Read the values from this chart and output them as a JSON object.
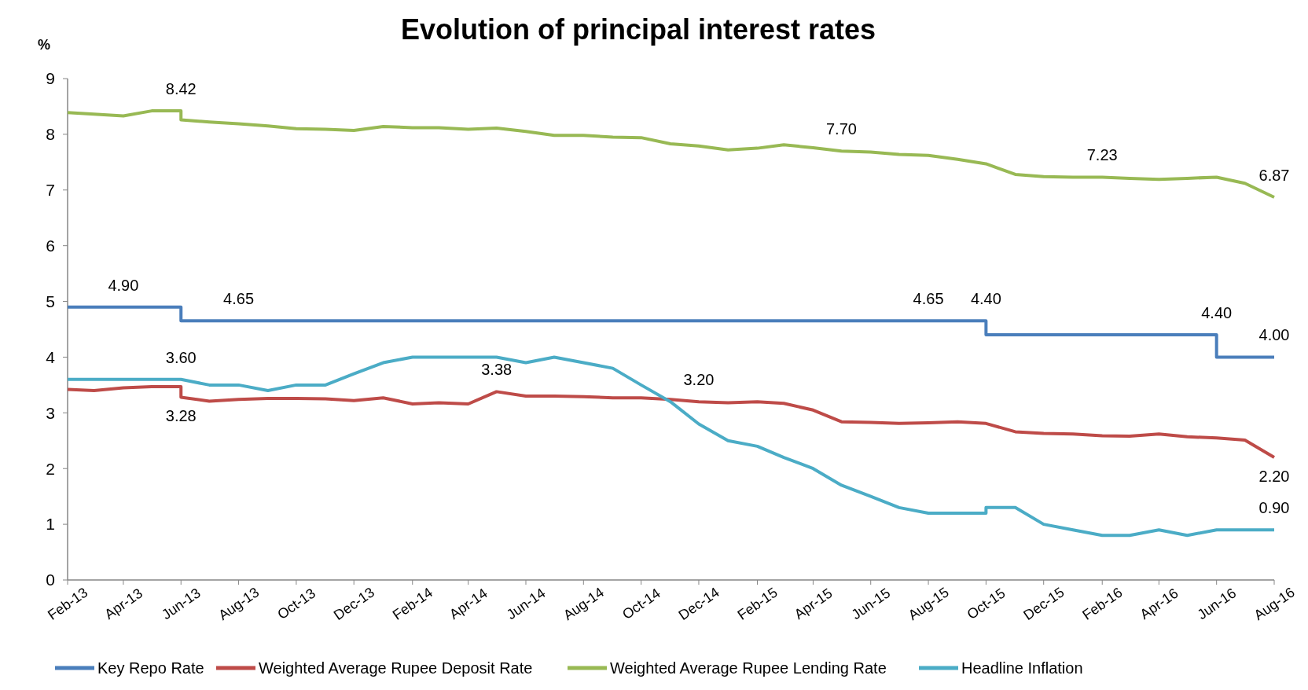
{
  "chart_data": {
    "type": "line",
    "title": "Evolution of  principal interest rates",
    "ylabel": "%",
    "xlim": [
      "2013-02",
      "2016-08"
    ],
    "xticks": [
      {
        "value": "2013-02",
        "label": "Feb-13"
      },
      {
        "value": "2013-04",
        "label": "Apr-13"
      },
      {
        "value": "2013-06",
        "label": "Jun-13"
      },
      {
        "value": "2013-08",
        "label": "Aug-13"
      },
      {
        "value": "2013-10",
        "label": "Oct-13"
      },
      {
        "value": "2013-12",
        "label": "Dec-13"
      },
      {
        "value": "2014-02",
        "label": "Feb-14"
      },
      {
        "value": "2014-04",
        "label": "Apr-14"
      },
      {
        "value": "2014-06",
        "label": "Jun-14"
      },
      {
        "value": "2014-08",
        "label": "Aug-14"
      },
      {
        "value": "2014-10",
        "label": "Oct-14"
      },
      {
        "value": "2014-12",
        "label": "Dec-14"
      },
      {
        "value": "2015-02",
        "label": "Feb-15"
      },
      {
        "value": "2015-04",
        "label": "Apr-15"
      },
      {
        "value": "2015-06",
        "label": "Jun-15"
      },
      {
        "value": "2015-08",
        "label": "Aug-15"
      },
      {
        "value": "2015-10",
        "label": "Oct-15"
      },
      {
        "value": "2015-12",
        "label": "Dec-15"
      },
      {
        "value": "2016-02",
        "label": "Feb-16"
      },
      {
        "value": "2016-04",
        "label": "Apr-16"
      },
      {
        "value": "2016-06",
        "label": "Jun-16"
      },
      {
        "value": "2016-08",
        "label": "Aug-16"
      }
    ],
    "ylim": [
      0,
      9
    ],
    "yticks": [
      0,
      1,
      2,
      3,
      4,
      5,
      6,
      7,
      8,
      9
    ],
    "grid": false,
    "legend": "bottom",
    "marker": "none",
    "line_style": "solid",
    "series": [
      {
        "name": "Key Repo Rate",
        "color": "#4a7ebb",
        "x": [
          "2013-02",
          "2013-06",
          "2013-06",
          "2015-10",
          "2015-10",
          "2016-06",
          "2016-06",
          "2016-08"
        ],
        "values": [
          4.9,
          4.9,
          4.65,
          4.65,
          4.4,
          4.4,
          4.0,
          4.0
        ]
      },
      {
        "name": "Weighted Average Rupee Deposit Rate",
        "color": "#be4b48",
        "x": [
          "2013-02",
          "2013-03",
          "2013-04",
          "2013-05",
          "2013-06",
          "2013-06",
          "2013-07",
          "2013-08",
          "2013-09",
          "2013-10",
          "2013-11",
          "2013-12",
          "2014-01",
          "2014-02",
          "2014-03",
          "2014-04",
          "2014-05",
          "2014-06",
          "2014-07",
          "2014-08",
          "2014-09",
          "2014-10",
          "2014-11",
          "2014-12",
          "2015-01",
          "2015-02",
          "2015-03",
          "2015-04",
          "2015-05",
          "2015-06",
          "2015-07",
          "2015-08",
          "2015-09",
          "2015-10",
          "2015-11",
          "2015-12",
          "2016-01",
          "2016-02",
          "2016-03",
          "2016-04",
          "2016-05",
          "2016-06",
          "2016-07",
          "2016-08"
        ],
        "values": [
          3.42,
          3.4,
          3.45,
          3.47,
          3.47,
          3.28,
          3.21,
          3.24,
          3.26,
          3.26,
          3.25,
          3.22,
          3.27,
          3.16,
          3.18,
          3.16,
          3.38,
          3.3,
          3.3,
          3.29,
          3.27,
          3.27,
          3.24,
          3.2,
          3.18,
          3.2,
          3.17,
          3.05,
          2.84,
          2.83,
          2.81,
          2.82,
          2.84,
          2.81,
          2.66,
          2.63,
          2.62,
          2.59,
          2.58,
          2.62,
          2.57,
          2.55,
          2.51,
          2.2
        ]
      },
      {
        "name": "Weighted Average Rupee Lending Rate",
        "color": "#98b954",
        "x": [
          "2013-02",
          "2013-03",
          "2013-04",
          "2013-05",
          "2013-06",
          "2013-06",
          "2013-07",
          "2013-08",
          "2013-09",
          "2013-10",
          "2013-11",
          "2013-12",
          "2014-01",
          "2014-02",
          "2014-03",
          "2014-04",
          "2014-05",
          "2014-06",
          "2014-07",
          "2014-08",
          "2014-09",
          "2014-10",
          "2014-11",
          "2014-12",
          "2015-01",
          "2015-02",
          "2015-03",
          "2015-04",
          "2015-05",
          "2015-06",
          "2015-07",
          "2015-08",
          "2015-09",
          "2015-10",
          "2015-11",
          "2015-12",
          "2016-01",
          "2016-02",
          "2016-03",
          "2016-04",
          "2016-05",
          "2016-06",
          "2016-07",
          "2016-08"
        ],
        "values": [
          8.39,
          8.36,
          8.33,
          8.42,
          8.42,
          8.26,
          8.22,
          8.19,
          8.15,
          8.1,
          8.09,
          8.07,
          8.14,
          8.12,
          8.12,
          8.09,
          8.11,
          8.05,
          7.98,
          7.98,
          7.95,
          7.94,
          7.83,
          7.79,
          7.72,
          7.75,
          7.81,
          7.76,
          7.7,
          7.68,
          7.64,
          7.62,
          7.55,
          7.47,
          7.28,
          7.24,
          7.23,
          7.23,
          7.21,
          7.19,
          7.21,
          7.23,
          7.12,
          6.87
        ]
      },
      {
        "name": "Headline Inflation",
        "color": "#4bacc6",
        "x": [
          "2013-02",
          "2013-03",
          "2013-04",
          "2013-05",
          "2013-06",
          "2013-07",
          "2013-08",
          "2013-09",
          "2013-10",
          "2013-11",
          "2013-12",
          "2014-01",
          "2014-02",
          "2014-03",
          "2014-04",
          "2014-05",
          "2014-06",
          "2014-07",
          "2014-08",
          "2014-09",
          "2014-10",
          "2014-11",
          "2014-12",
          "2015-01",
          "2015-02",
          "2015-03",
          "2015-04",
          "2015-05",
          "2015-06",
          "2015-07",
          "2015-08",
          "2015-09",
          "2015-10",
          "2015-10",
          "2015-11",
          "2015-12",
          "2016-01",
          "2016-02",
          "2016-03",
          "2016-04",
          "2016-05",
          "2016-06",
          "2016-07",
          "2016-08"
        ],
        "values": [
          3.6,
          3.6,
          3.6,
          3.6,
          3.6,
          3.5,
          3.5,
          3.4,
          3.5,
          3.5,
          3.7,
          3.9,
          4.0,
          4.0,
          4.0,
          4.0,
          3.9,
          4.0,
          3.9,
          3.8,
          3.5,
          3.2,
          2.8,
          2.5,
          2.4,
          2.2,
          2.0,
          1.7,
          1.5,
          1.3,
          1.2,
          1.2,
          1.2,
          1.3,
          1.3,
          1.0,
          0.9,
          0.8,
          0.8,
          0.9,
          0.8,
          0.9,
          0.9,
          0.9
        ]
      }
    ],
    "annotations": [
      {
        "text": "8.42",
        "x": "2013-06",
        "y": 8.42
      },
      {
        "text": "7.70",
        "x": "2015-05",
        "y": 7.7
      },
      {
        "text": "7.23",
        "x": "2016-02",
        "y": 7.23
      },
      {
        "text": "6.87",
        "x": "2016-08",
        "y": 6.87
      },
      {
        "text": "4.90",
        "x": "2013-04",
        "y": 4.9
      },
      {
        "text": "4.65",
        "x": "2013-08",
        "y": 4.65
      },
      {
        "text": "4.65",
        "x": "2015-08",
        "y": 4.65
      },
      {
        "text": "4.40",
        "x": "2015-10",
        "y": 4.4
      },
      {
        "text": "4.40",
        "x": "2016-06",
        "y": 4.4
      },
      {
        "text": "4.00",
        "x": "2016-08",
        "y": 4.0
      },
      {
        "text": "3.60",
        "x": "2013-06",
        "y": 3.6
      },
      {
        "text": "3.28",
        "x": "2013-06",
        "y": 3.28
      },
      {
        "text": "3.38",
        "x": "2014-05",
        "y": 3.38
      },
      {
        "text": "3.20",
        "x": "2014-12",
        "y": 3.2
      },
      {
        "text": "2.20",
        "x": "2016-08",
        "y": 2.2
      },
      {
        "text": "0.90",
        "x": "2016-08",
        "y": 0.9
      }
    ]
  }
}
